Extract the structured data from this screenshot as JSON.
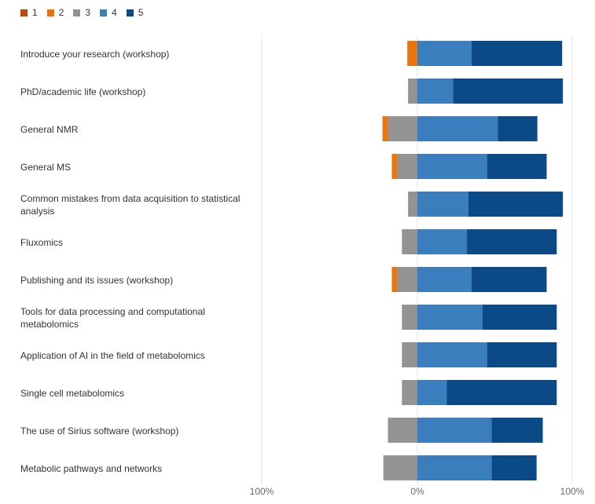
{
  "chart_data": {
    "type": "bar",
    "orientation": "horizontal",
    "stacked": "diverging",
    "legend": {
      "position": "top-left"
    },
    "series": [
      {
        "name": "1",
        "color": "#C0460B"
      },
      {
        "name": "2",
        "color": "#E8760F"
      },
      {
        "name": "3",
        "color": "#939393"
      },
      {
        "name": "4",
        "color": "#3A7EBD"
      },
      {
        "name": "5",
        "color": "#0C4987"
      }
    ],
    "categories": [
      "Introduce your research (workshop)",
      "PhD/academic life (workshop)",
      "General NMR",
      "General MS",
      "Common mistakes from data acquisition to statistical analysis",
      "Fluxomics",
      "Publishing and its issues (workshop)",
      "Tools for data processing and computational metabolomics",
      "Application of AI in the field of metabolomics",
      "Single cell metabolomics",
      "The use of Sirius software (workshop)",
      "Metabolic pathways and networks"
    ],
    "values": [
      {
        "1": 0,
        "2": 6.5,
        "3": 0,
        "4": 35,
        "5": 58.5
      },
      {
        "1": 0,
        "2": 0,
        "3": 6,
        "4": 23,
        "5": 71
      },
      {
        "1": 0,
        "2": 3.5,
        "3": 19,
        "4": 52,
        "5": 25.5
      },
      {
        "1": 0,
        "2": 3.5,
        "3": 13,
        "4": 45,
        "5": 38.5
      },
      {
        "1": 0,
        "2": 0,
        "3": 6,
        "4": 33,
        "5": 61
      },
      {
        "1": 0,
        "2": 0,
        "3": 10,
        "4": 32,
        "5": 58
      },
      {
        "1": 0,
        "2": 3.5,
        "3": 13,
        "4": 35,
        "5": 48.5
      },
      {
        "1": 0,
        "2": 0,
        "3": 10,
        "4": 42,
        "5": 48
      },
      {
        "1": 0,
        "2": 0,
        "3": 10,
        "4": 45,
        "5": 45
      },
      {
        "1": 0,
        "2": 0,
        "3": 10,
        "4": 19,
        "5": 71
      },
      {
        "1": 0,
        "2": 0,
        "3": 19,
        "4": 48,
        "5": 33
      },
      {
        "1": 0,
        "2": 0,
        "3": 22,
        "4": 48,
        "5": 29
      }
    ],
    "xlim": [
      -100,
      100
    ],
    "xtick_labels": [
      "100%",
      "0%",
      "100%"
    ],
    "grid": true
  }
}
